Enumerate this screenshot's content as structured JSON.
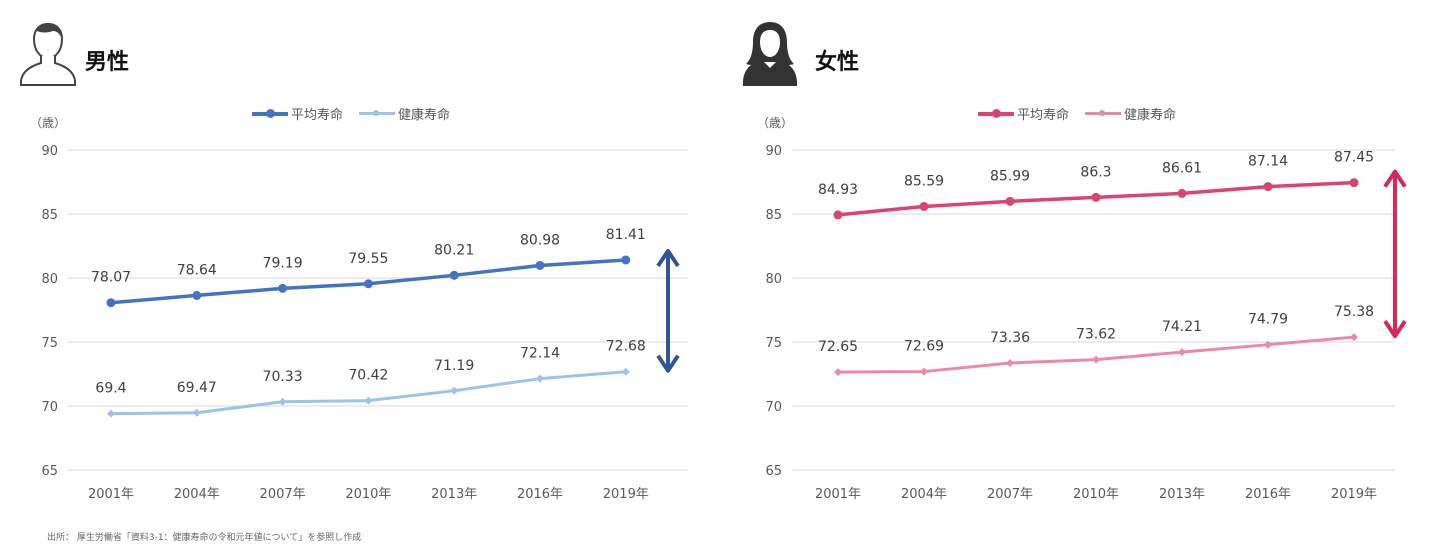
{
  "source": "出所： 厚生労働省「資料3-1：健康寿命の令和元年値について」を参照し作成",
  "panels": [
    {
      "title": "男性",
      "icon": "male-user-icon",
      "unit": "（歳）",
      "legend": [
        "平均寿命",
        "健康寿命"
      ]
    },
    {
      "title": "女性",
      "icon": "female-user-icon",
      "unit": "（歳）",
      "legend": [
        "平均寿命",
        "健康寿命"
      ]
    }
  ],
  "chart_data": [
    {
      "type": "line",
      "title": "男性",
      "ylabel": "（歳）",
      "ylim": [
        65,
        90
      ],
      "yticks": [
        65,
        70,
        75,
        80,
        85,
        90
      ],
      "grid": true,
      "legend_position": "top",
      "categories": [
        "2001年",
        "2004年",
        "2007年",
        "2010年",
        "2013年",
        "2016年",
        "2019年"
      ],
      "series": [
        {
          "name": "平均寿命",
          "color": "#4472C4",
          "marker": "circle",
          "values": [
            78.07,
            78.64,
            79.19,
            79.55,
            80.21,
            80.98,
            81.41
          ]
        },
        {
          "name": "健康寿命",
          "color": "#9DC3E6",
          "marker": "diamond",
          "values": [
            69.4,
            69.47,
            70.33,
            70.42,
            71.19,
            72.14,
            72.68
          ]
        }
      ],
      "arrow_color": "#2F5597"
    },
    {
      "type": "line",
      "title": "女性",
      "ylabel": "（歳）",
      "ylim": [
        65,
        90
      ],
      "yticks": [
        65,
        70,
        75,
        80,
        85,
        90
      ],
      "grid": true,
      "legend_position": "top",
      "categories": [
        "2001年",
        "2004年",
        "2007年",
        "2010年",
        "2013年",
        "2016年",
        "2019年"
      ],
      "series": [
        {
          "name": "平均寿命",
          "color": "#DB4471",
          "marker": "circle",
          "values": [
            84.93,
            85.59,
            85.99,
            86.3,
            86.61,
            87.14,
            87.45
          ]
        },
        {
          "name": "健康寿命",
          "color": "#E98BA8",
          "marker": "diamond",
          "values": [
            72.65,
            72.69,
            73.36,
            73.62,
            74.21,
            74.79,
            75.38
          ]
        }
      ],
      "arrow_color": "#D6265A"
    }
  ]
}
